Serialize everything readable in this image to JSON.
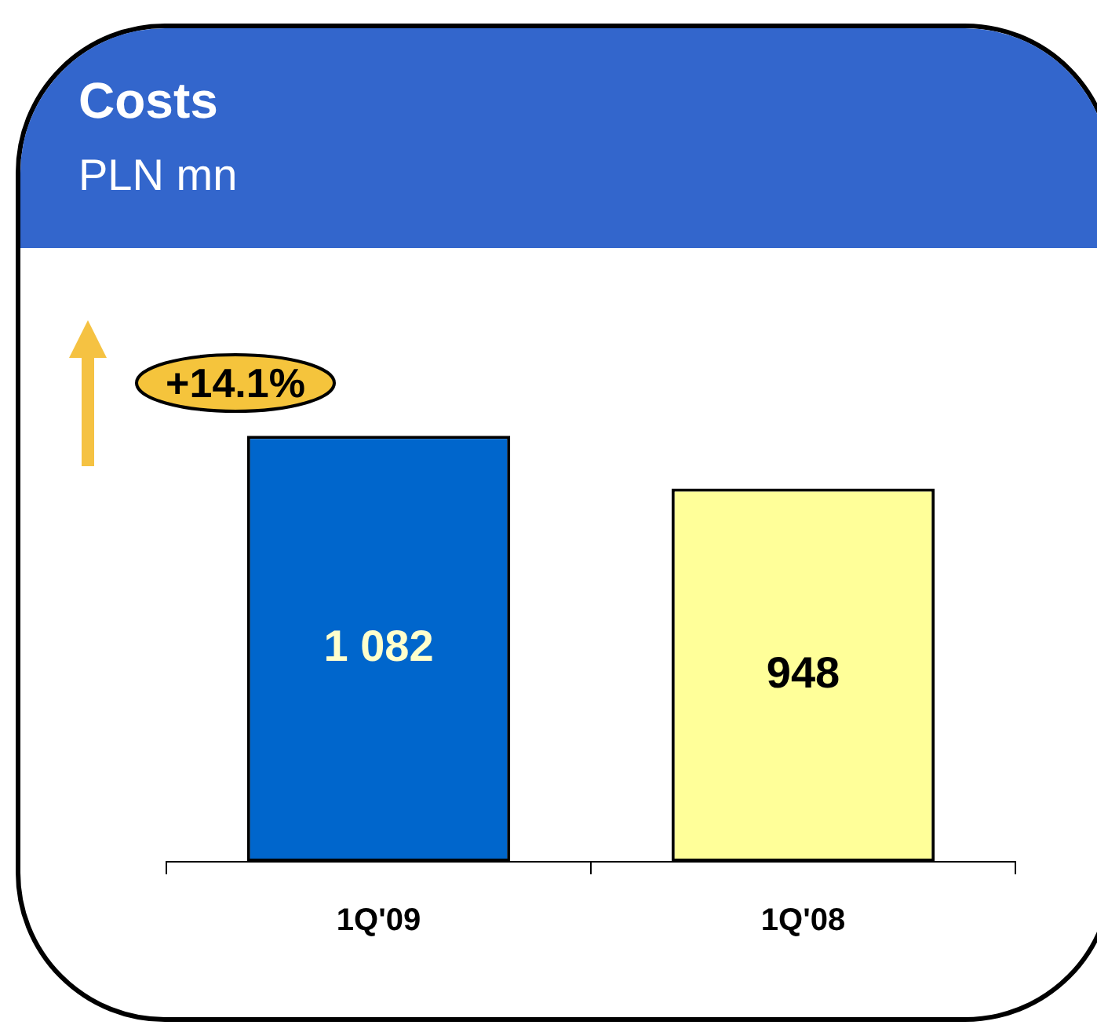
{
  "chart_data": {
    "type": "bar",
    "title": "Costs",
    "subtitle": "PLN mn",
    "categories": [
      "1Q'09",
      "1Q'08"
    ],
    "values": [
      1082,
      948
    ],
    "colors": [
      "#0066cc",
      "#ffff99"
    ],
    "value_labels": [
      "1 082",
      "948"
    ],
    "annotations": [
      "+14.1%"
    ],
    "tick_labels": "x"
  }
}
